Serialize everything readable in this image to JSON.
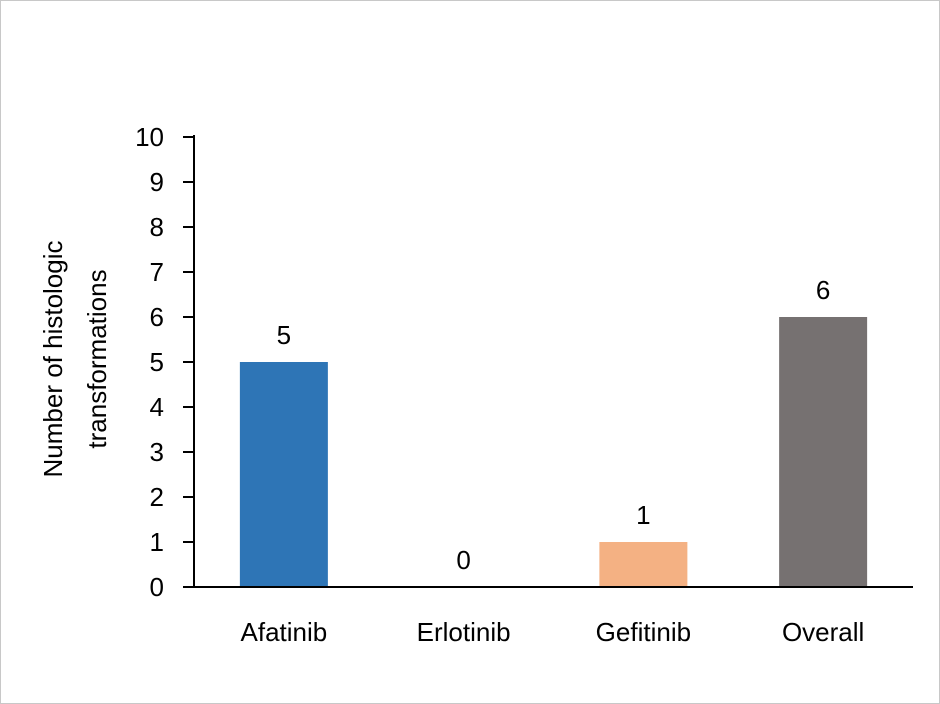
{
  "chart_data": {
    "type": "bar",
    "title": "",
    "xlabel": "",
    "ylabel_lines": [
      "Number of histologic",
      "transformations"
    ],
    "categories": [
      "Afatinib",
      "Erlotinib",
      "Gefitinib",
      "Overall"
    ],
    "values": [
      5,
      0,
      1,
      6
    ],
    "data_labels": [
      "5",
      "0",
      "1",
      "6"
    ],
    "colors": [
      "#2E75B6",
      "#2E75B6",
      "#F4B183",
      "#767171"
    ],
    "ylim": [
      0,
      10
    ],
    "yticks": [
      "0",
      "1",
      "2",
      "3",
      "4",
      "5",
      "6",
      "7",
      "8",
      "9",
      "10"
    ],
    "grid": false,
    "legend": "none"
  }
}
